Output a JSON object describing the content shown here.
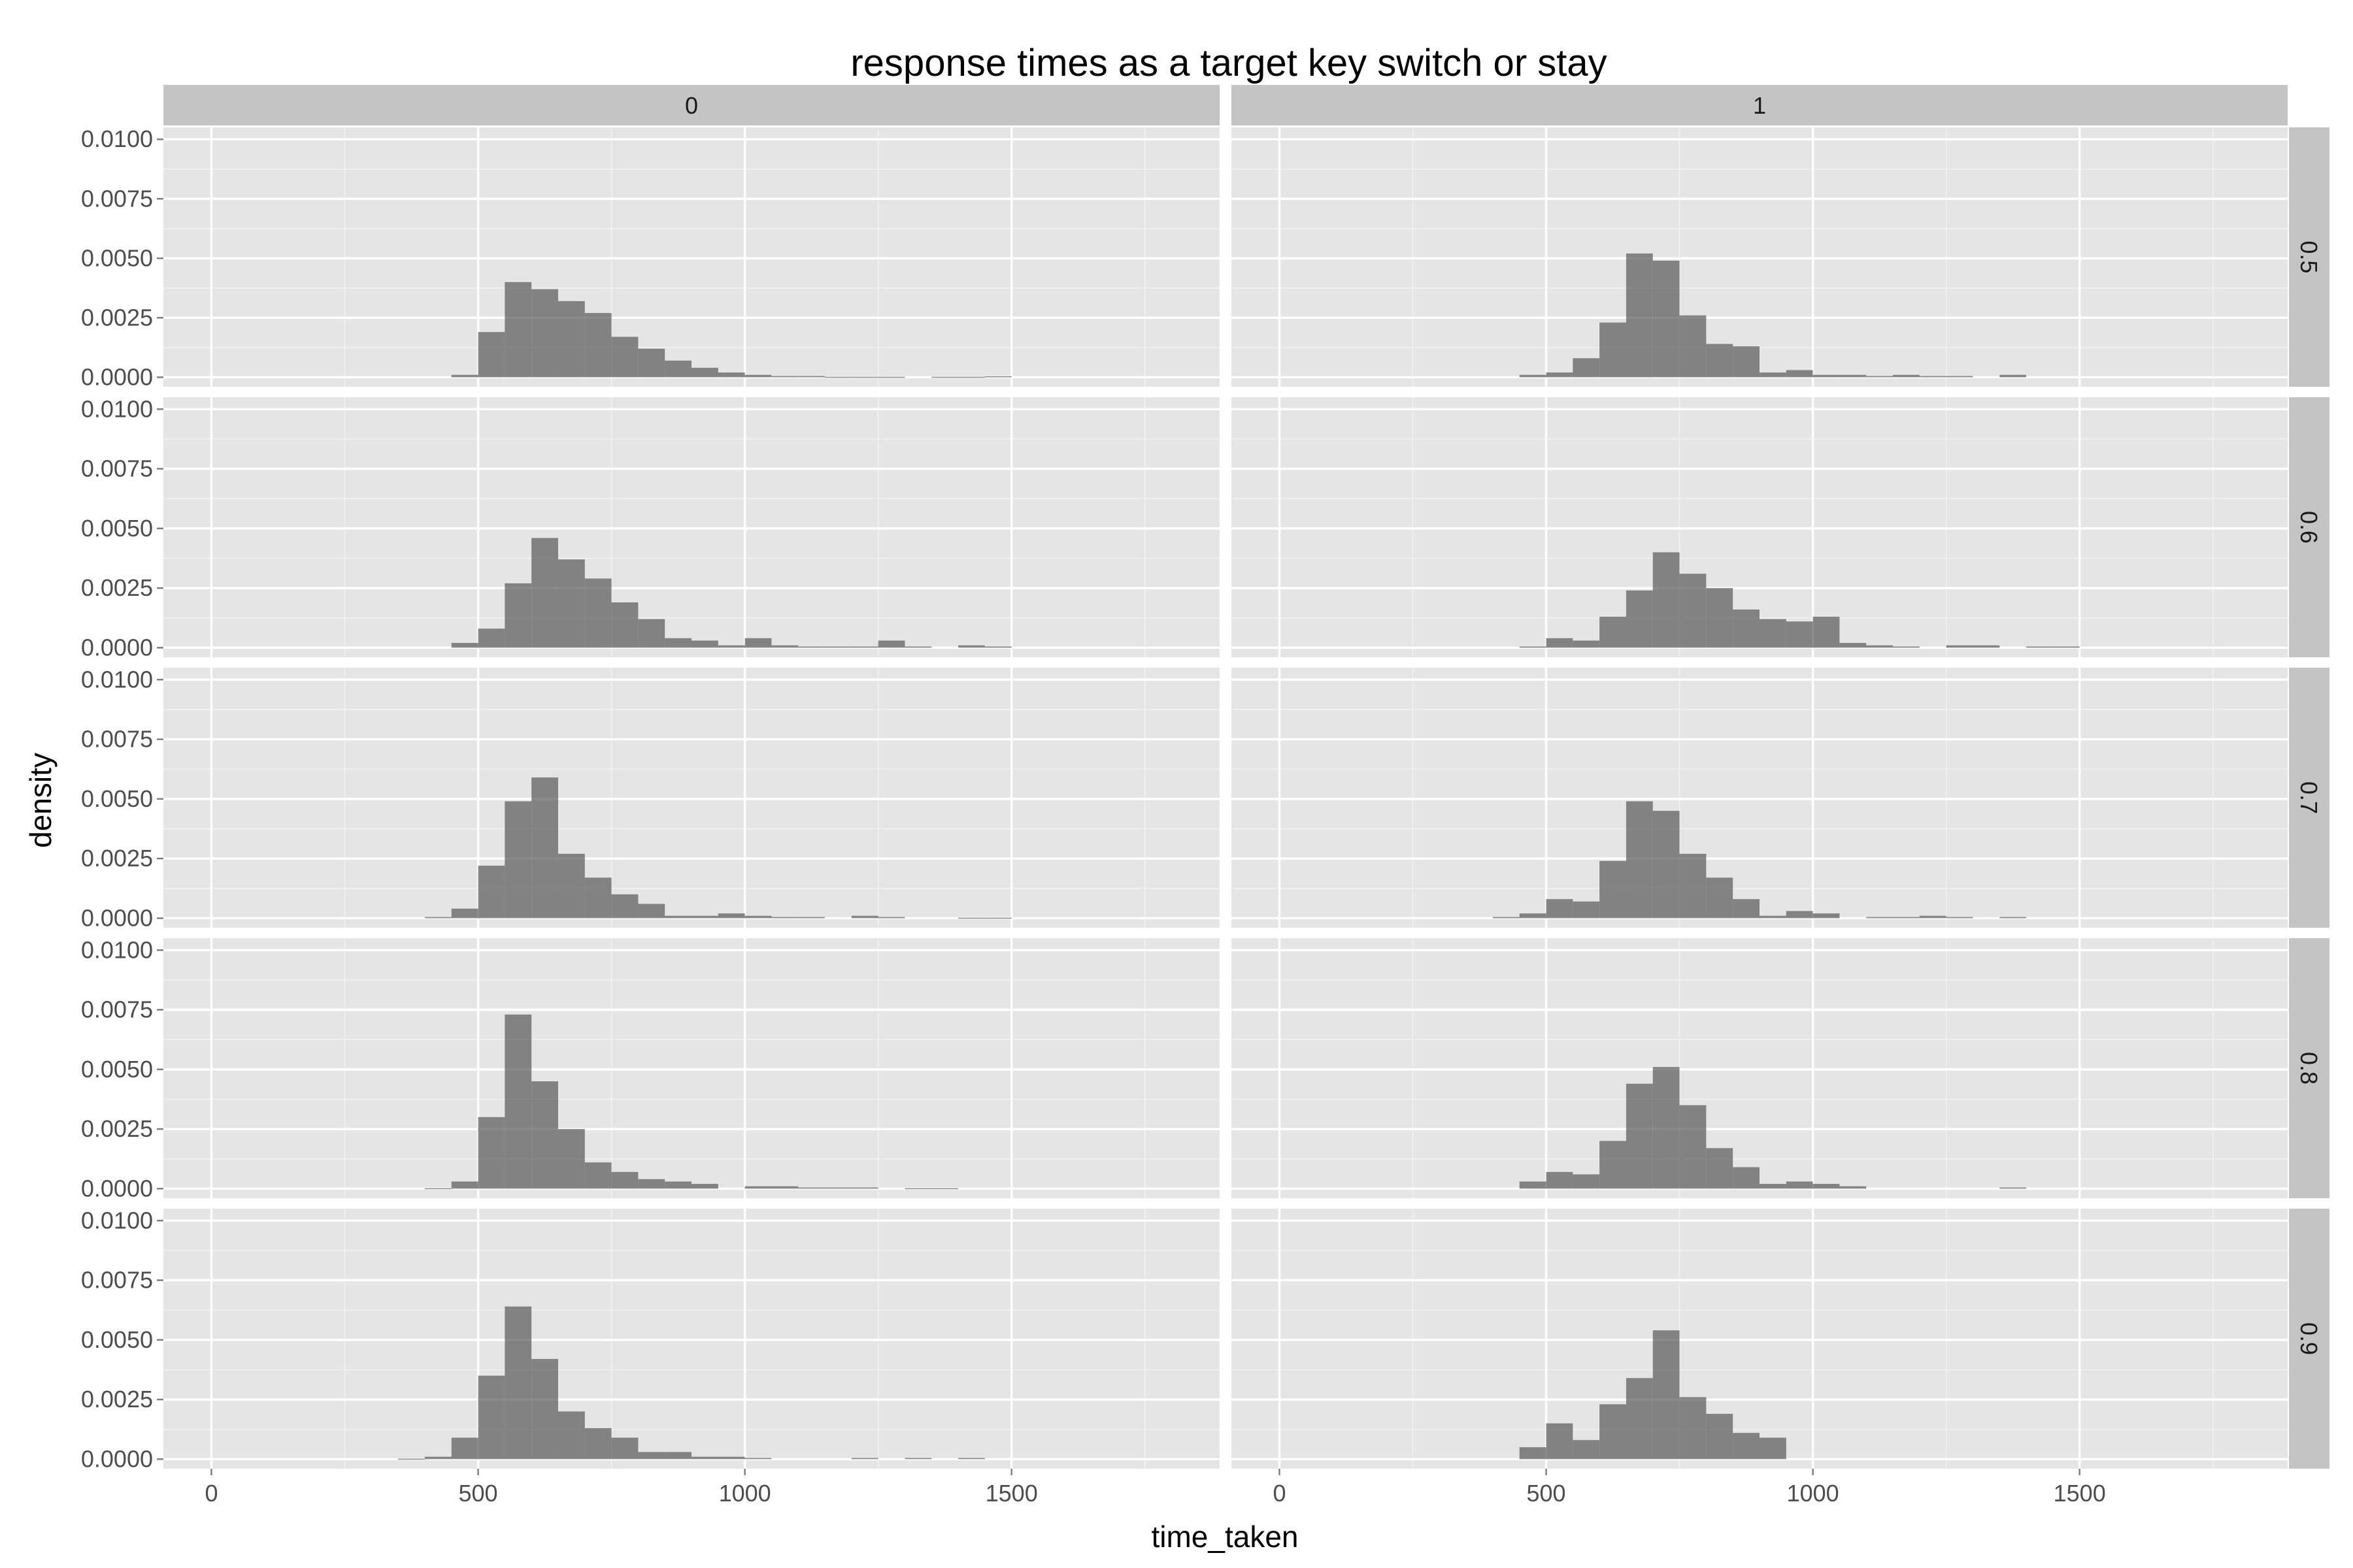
{
  "chart_data": {
    "type": "bar",
    "subtype": "faceted-histogram",
    "title": "response times as a target key switch or stay",
    "xlabel": "time_taken",
    "ylabel": "density",
    "xlim": [
      -90,
      1890
    ],
    "ylim": [
      -0.0004,
      0.0105
    ],
    "x_ticks": [
      0,
      500,
      1000,
      1500
    ],
    "x_tick_labels": [
      "0",
      "500",
      "1000",
      "1500"
    ],
    "y_ticks": [
      0,
      0.0025,
      0.005,
      0.0075,
      0.01
    ],
    "y_tick_labels": [
      "0.0000",
      "0.0025",
      "0.0050",
      "0.0075",
      "0.0100"
    ],
    "bin_width": 50,
    "grid": true,
    "bar_color": "#595959",
    "bar_opacity": 0.7,
    "panel_background": "#e5e5e5",
    "strip_background": "#c4c4c4",
    "col_facets": [
      "0",
      "1"
    ],
    "row_facets": [
      "0.5",
      "0.6",
      "0.7",
      "0.8",
      "0.9"
    ],
    "panels": [
      {
        "col": 0,
        "row": 0,
        "bins": [
          [
            450,
            0.0001
          ],
          [
            500,
            0.0019
          ],
          [
            550,
            0.004
          ],
          [
            600,
            0.0037
          ],
          [
            650,
            0.0032
          ],
          [
            700,
            0.0027
          ],
          [
            750,
            0.0017
          ],
          [
            800,
            0.0012
          ],
          [
            850,
            0.0007
          ],
          [
            900,
            0.0004
          ],
          [
            950,
            0.0002
          ],
          [
            1000,
            0.0001
          ],
          [
            1050,
            5e-05
          ],
          [
            1100,
            5e-05
          ],
          [
            1150,
            2e-05
          ],
          [
            1200,
            2e-05
          ],
          [
            1250,
            2e-05
          ],
          [
            1350,
            2e-05
          ],
          [
            1400,
            2e-05
          ],
          [
            1450,
            4e-05
          ]
        ]
      },
      {
        "col": 1,
        "row": 0,
        "bins": [
          [
            450,
            0.0001
          ],
          [
            500,
            0.0002
          ],
          [
            550,
            0.0008
          ],
          [
            600,
            0.0023
          ],
          [
            650,
            0.0052
          ],
          [
            700,
            0.0049
          ],
          [
            750,
            0.0026
          ],
          [
            800,
            0.0014
          ],
          [
            850,
            0.0013
          ],
          [
            900,
            0.0002
          ],
          [
            950,
            0.0003
          ],
          [
            1000,
            0.0001
          ],
          [
            1050,
            0.0001
          ],
          [
            1100,
            5e-05
          ],
          [
            1150,
            0.0001
          ],
          [
            1200,
            5e-05
          ],
          [
            1250,
            5e-05
          ],
          [
            1350,
            0.0001
          ]
        ]
      },
      {
        "col": 0,
        "row": 1,
        "bins": [
          [
            450,
            0.0002
          ],
          [
            500,
            0.0008
          ],
          [
            550,
            0.0027
          ],
          [
            600,
            0.0046
          ],
          [
            650,
            0.0037
          ],
          [
            700,
            0.0029
          ],
          [
            750,
            0.0019
          ],
          [
            800,
            0.0012
          ],
          [
            850,
            0.0004
          ],
          [
            900,
            0.0003
          ],
          [
            950,
            0.0001
          ],
          [
            1000,
            0.0004
          ],
          [
            1050,
            0.0001
          ],
          [
            1100,
            5e-05
          ],
          [
            1150,
            5e-05
          ],
          [
            1200,
            5e-05
          ],
          [
            1250,
            0.0003
          ],
          [
            1300,
            5e-05
          ],
          [
            1400,
            0.0001
          ],
          [
            1450,
            5e-05
          ]
        ]
      },
      {
        "col": 1,
        "row": 1,
        "bins": [
          [
            450,
            5e-05
          ],
          [
            500,
            0.0004
          ],
          [
            550,
            0.0003
          ],
          [
            600,
            0.0013
          ],
          [
            650,
            0.0024
          ],
          [
            700,
            0.004
          ],
          [
            750,
            0.0031
          ],
          [
            800,
            0.0025
          ],
          [
            850,
            0.0016
          ],
          [
            900,
            0.0012
          ],
          [
            950,
            0.0011
          ],
          [
            1000,
            0.0013
          ],
          [
            1050,
            0.0002
          ],
          [
            1100,
            0.0001
          ],
          [
            1150,
            5e-05
          ],
          [
            1250,
            0.0001
          ],
          [
            1300,
            0.0001
          ],
          [
            1400,
            5e-05
          ],
          [
            1450,
            5e-05
          ]
        ]
      },
      {
        "col": 0,
        "row": 2,
        "bins": [
          [
            400,
            5e-05
          ],
          [
            450,
            0.0004
          ],
          [
            500,
            0.0022
          ],
          [
            550,
            0.0049
          ],
          [
            600,
            0.0059
          ],
          [
            650,
            0.0027
          ],
          [
            700,
            0.0017
          ],
          [
            750,
            0.001
          ],
          [
            800,
            0.0006
          ],
          [
            850,
            0.0001
          ],
          [
            900,
            0.0001
          ],
          [
            950,
            0.0002
          ],
          [
            1000,
            0.0001
          ],
          [
            1050,
            5e-05
          ],
          [
            1100,
            5e-05
          ],
          [
            1200,
            0.0001
          ],
          [
            1250,
            5e-05
          ],
          [
            1400,
            2e-05
          ],
          [
            1450,
            2e-05
          ]
        ]
      },
      {
        "col": 1,
        "row": 2,
        "bins": [
          [
            400,
            5e-05
          ],
          [
            450,
            0.0002
          ],
          [
            500,
            0.0008
          ],
          [
            550,
            0.0007
          ],
          [
            600,
            0.0024
          ],
          [
            650,
            0.0049
          ],
          [
            700,
            0.0045
          ],
          [
            750,
            0.0027
          ],
          [
            800,
            0.0017
          ],
          [
            850,
            0.0008
          ],
          [
            900,
            0.0001
          ],
          [
            950,
            0.0003
          ],
          [
            1000,
            0.0002
          ],
          [
            1100,
            5e-05
          ],
          [
            1150,
            5e-05
          ],
          [
            1200,
            0.0001
          ],
          [
            1250,
            5e-05
          ],
          [
            1350,
            5e-05
          ]
        ]
      },
      {
        "col": 0,
        "row": 3,
        "bins": [
          [
            400,
            2e-05
          ],
          [
            450,
            0.0003
          ],
          [
            500,
            0.003
          ],
          [
            550,
            0.0073
          ],
          [
            600,
            0.0045
          ],
          [
            650,
            0.0025
          ],
          [
            700,
            0.0011
          ],
          [
            750,
            0.0007
          ],
          [
            800,
            0.0004
          ],
          [
            850,
            0.0003
          ],
          [
            900,
            0.0002
          ],
          [
            1000,
            0.0001
          ],
          [
            1050,
            0.0001
          ],
          [
            1100,
            5e-05
          ],
          [
            1150,
            5e-05
          ],
          [
            1200,
            5e-05
          ],
          [
            1300,
            2e-05
          ],
          [
            1350,
            2e-05
          ]
        ]
      },
      {
        "col": 1,
        "row": 3,
        "bins": [
          [
            450,
            0.0003
          ],
          [
            500,
            0.0007
          ],
          [
            550,
            0.0006
          ],
          [
            600,
            0.002
          ],
          [
            650,
            0.0044
          ],
          [
            700,
            0.0051
          ],
          [
            750,
            0.0035
          ],
          [
            800,
            0.0017
          ],
          [
            850,
            0.0009
          ],
          [
            900,
            0.0002
          ],
          [
            950,
            0.0003
          ],
          [
            1000,
            0.0002
          ],
          [
            1050,
            0.0001
          ],
          [
            1350,
            5e-05
          ]
        ]
      },
      {
        "col": 0,
        "row": 4,
        "bins": [
          [
            350,
            2e-05
          ],
          [
            400,
            0.0001
          ],
          [
            450,
            0.0009
          ],
          [
            500,
            0.0035
          ],
          [
            550,
            0.0064
          ],
          [
            600,
            0.0042
          ],
          [
            650,
            0.002
          ],
          [
            700,
            0.0013
          ],
          [
            750,
            0.0009
          ],
          [
            800,
            0.0003
          ],
          [
            850,
            0.0003
          ],
          [
            900,
            0.0001
          ],
          [
            950,
            0.0001
          ],
          [
            1000,
            5e-05
          ],
          [
            1200,
            5e-05
          ],
          [
            1300,
            5e-05
          ],
          [
            1400,
            5e-05
          ]
        ]
      },
      {
        "col": 1,
        "row": 4,
        "bins": [
          [
            450,
            0.0005
          ],
          [
            500,
            0.0015
          ],
          [
            550,
            0.0008
          ],
          [
            600,
            0.0023
          ],
          [
            650,
            0.0034
          ],
          [
            700,
            0.0054
          ],
          [
            750,
            0.0026
          ],
          [
            800,
            0.0019
          ],
          [
            850,
            0.0011
          ],
          [
            900,
            0.0009
          ]
        ]
      }
    ]
  }
}
